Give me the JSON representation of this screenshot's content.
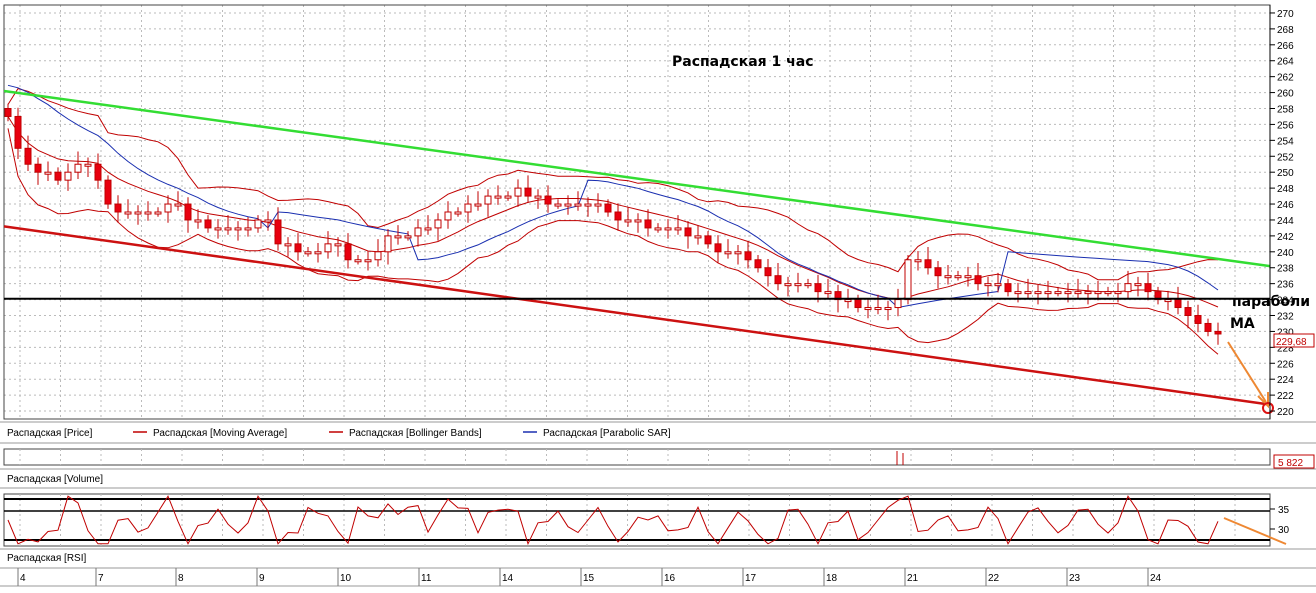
{
  "chart_data": {
    "type": "candlestick",
    "title": "Распадская    1 час",
    "price_axis": {
      "range": [
        219,
        271
      ],
      "ticks": [
        220,
        222,
        224,
        226,
        228,
        230,
        232,
        234,
        236,
        238,
        240,
        242,
        244,
        246,
        248,
        250,
        252,
        254,
        256,
        258,
        260,
        262,
        264,
        266,
        268,
        270
      ]
    },
    "last_price_label": "229,68",
    "volume_label": "5 822",
    "rsi_axis": {
      "ticks": [
        35,
        30
      ]
    },
    "date_ticks": [
      "4",
      "7",
      "8",
      "9",
      "10",
      "11",
      "14",
      "15",
      "16",
      "17",
      "18",
      "21",
      "22",
      "23",
      "24"
    ],
    "legend": [
      {
        "name": "Распадская [Price]",
        "color": "#c00000"
      },
      {
        "name": "Распадская [Moving Average]",
        "color": "#c00000"
      },
      {
        "name": "Распадская [Bollinger Bands]",
        "color": "#c00000"
      },
      {
        "name": "Распадская [Parabolic SAR]",
        "color": "#1a2fb0"
      }
    ],
    "volume_panel_title": "Распадская [Volume]",
    "rsi_panel_title": "Распадская [RSI]",
    "annotations": [
      "параболи",
      "МА"
    ],
    "close": [
      257,
      253,
      251,
      250,
      250,
      249,
      250,
      251,
      251,
      249,
      246,
      245,
      245,
      245,
      245,
      245,
      246,
      246,
      244,
      244,
      243,
      243,
      243,
      243,
      243,
      244,
      244,
      241,
      241,
      240,
      240,
      240,
      241,
      241,
      239,
      239,
      239,
      240,
      242,
      242,
      242,
      243,
      243,
      244,
      245,
      245,
      246,
      246,
      247,
      247,
      247,
      248,
      247,
      247,
      246,
      246,
      246,
      246,
      246,
      246,
      245,
      244,
      244,
      244,
      243,
      243,
      243,
      243,
      242,
      242,
      241,
      240,
      240,
      240,
      239,
      238,
      237,
      236,
      236,
      236,
      236,
      235,
      235,
      234,
      234,
      233,
      233,
      233,
      233,
      234,
      239,
      239,
      238,
      237,
      237,
      237,
      237,
      236,
      236,
      236,
      235,
      235,
      235,
      235,
      235,
      235,
      235,
      235,
      235,
      235,
      235,
      235,
      236,
      236,
      235,
      234,
      234,
      233,
      232,
      231,
      230,
      229.68
    ],
    "colors": {
      "up": "#ffffff",
      "down": "#e8000f",
      "trend_upper": "#33dd33",
      "trend_lower": "#cc1111",
      "support": "#000000",
      "arrow": "#ee8833"
    }
  }
}
